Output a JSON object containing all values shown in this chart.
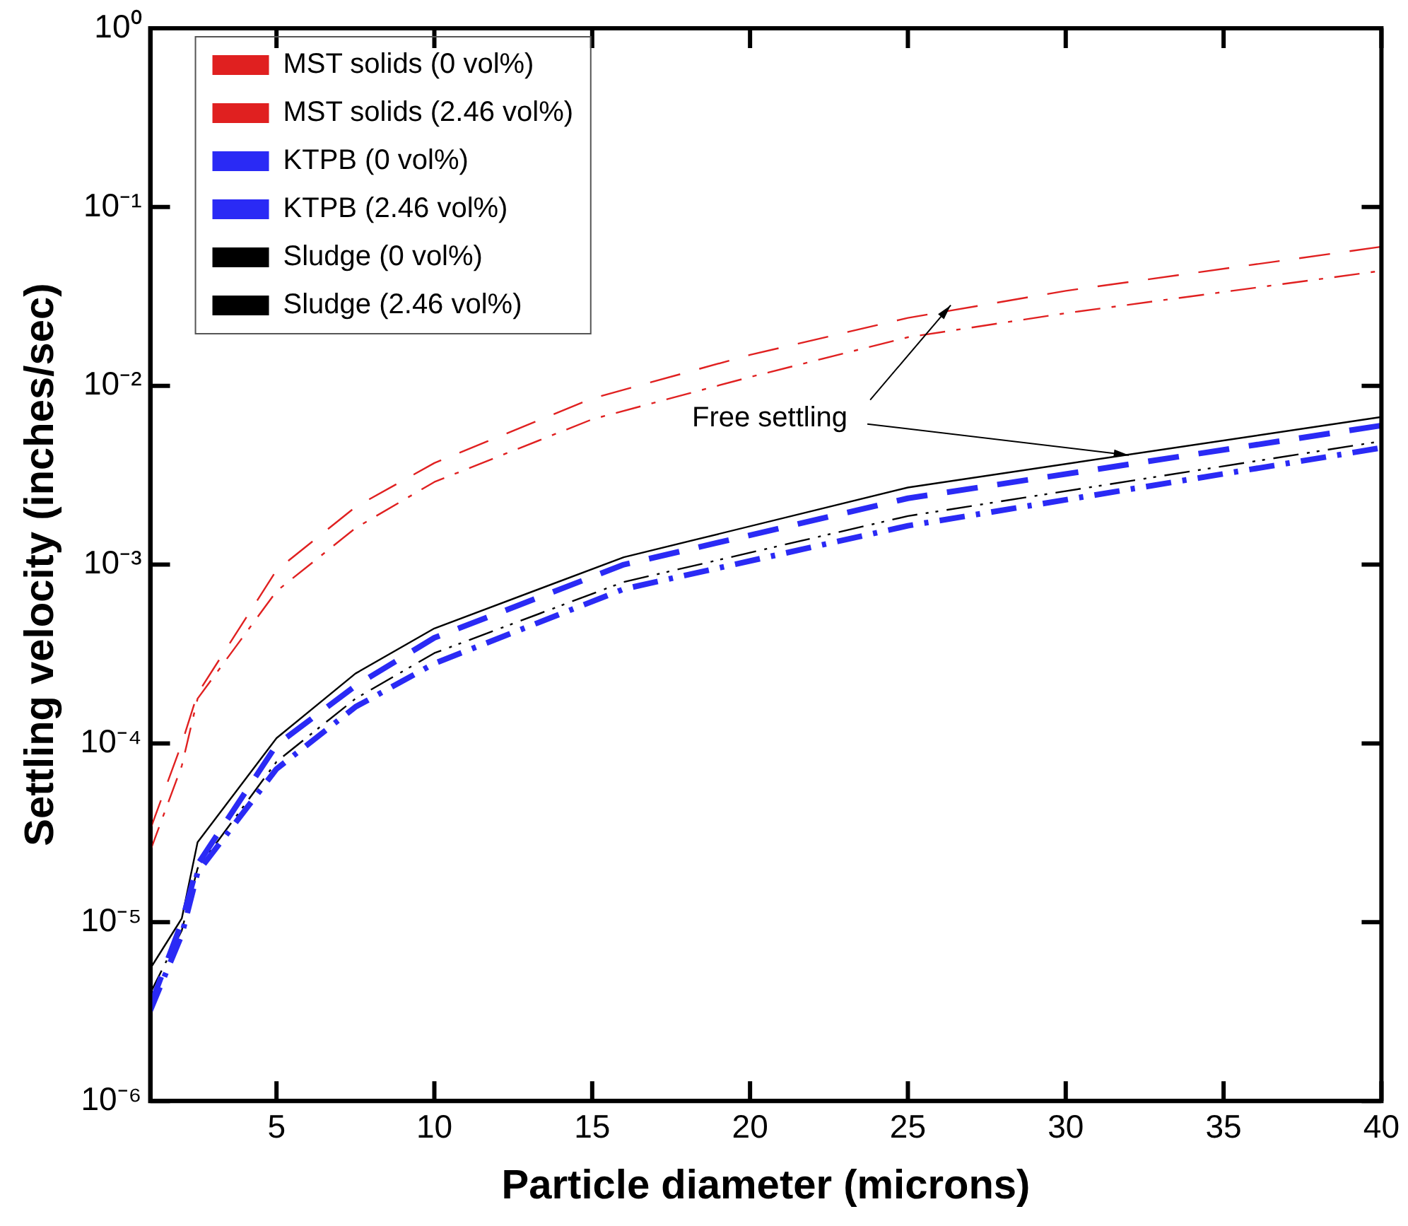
{
  "chart_data": {
    "type": "line",
    "xlabel": "Particle diameter (microns)",
    "ylabel": "Settling velocity (inches/sec)",
    "log": "y",
    "xlim": [
      1,
      40
    ],
    "xticks": [
      5,
      10,
      15,
      20,
      25,
      30,
      35,
      40
    ],
    "ylim": [
      1e-06,
      1
    ],
    "yticks": [
      {
        "value": 1e-06,
        "label": "10⁻⁶"
      },
      {
        "value": 1e-05,
        "label": "10⁻⁵"
      },
      {
        "value": 0.0001,
        "label": "10⁻⁴"
      },
      {
        "value": 0.001,
        "label": "10⁻³"
      },
      {
        "value": 0.01,
        "label": "10⁻²"
      },
      {
        "value": 0.1,
        "label": "10⁻¹"
      },
      {
        "value": 1,
        "label": "10⁰"
      }
    ],
    "grid": false,
    "legend": "top left",
    "marker": "none",
    "annotations": [
      {
        "text": "Free settling",
        "x": 32,
        "y": 0.0041
      }
    ],
    "series": [
      {
        "name": "MST solids (0 vol%)",
        "color": "#e02020",
        "line_style": "dashed",
        "x": [
          1,
          2,
          2.5,
          5,
          7.5,
          10,
          15,
          20,
          25,
          30,
          40
        ],
        "values": [
          3.3e-05,
          0.0001,
          0.00019,
          0.00093,
          0.0021,
          0.0037,
          0.0085,
          0.0149,
          0.024,
          0.034,
          0.06
        ]
      },
      {
        "name": "MST solids (2.46 vol%)",
        "color": "#e02020",
        "line_style": "dashdot",
        "x": [
          1,
          2,
          2.5,
          5,
          7.5,
          10,
          15,
          20,
          25,
          30,
          40
        ],
        "values": [
          2.5e-05,
          7.5e-05,
          0.000178,
          0.00071,
          0.0016,
          0.0029,
          0.0065,
          0.0112,
          0.0187,
          0.0255,
          0.044
        ]
      },
      {
        "name": "KTPB (0 vol%)",
        "color": "#2a2af5",
        "line_style": "dashed",
        "x": [
          1,
          2,
          2.5,
          5,
          7.5,
          10,
          16,
          25,
          40
        ],
        "values": [
          3.4e-06,
          1e-05,
          2.1e-05,
          9.8e-05,
          0.00021,
          0.00039,
          0.001,
          0.00235,
          0.006
        ]
      },
      {
        "name": "KTPB (2.46 vol%)",
        "color": "#2a2af5",
        "line_style": "dashdot",
        "x": [
          1,
          2,
          2.5,
          5,
          7.5,
          10,
          16,
          25,
          40
        ],
        "values": [
          3.2e-06,
          8.5e-06,
          1.9e-05,
          7.2e-05,
          0.00016,
          0.00028,
          0.00073,
          0.00165,
          0.0045
        ]
      },
      {
        "name": "Sludge (0 vol%)",
        "color": "#000000",
        "line_style": "solid",
        "x": [
          1,
          2,
          2.5,
          5,
          7.5,
          10,
          16,
          25,
          40
        ],
        "values": [
          5.5e-06,
          1.05e-05,
          2.8e-05,
          0.000107,
          0.000246,
          0.00044,
          0.0011,
          0.0027,
          0.0067
        ]
      },
      {
        "name": "Sludge (2.46 vol%)",
        "color": "#000000",
        "line_style": "dashdotdot",
        "x": [
          1,
          2,
          2.5,
          5,
          7.5,
          10,
          16,
          25,
          40
        ],
        "values": [
          4e-06,
          9e-06,
          2e-05,
          7.9e-05,
          0.000178,
          0.00032,
          0.0008,
          0.00187,
          0.0049
        ]
      }
    ]
  }
}
